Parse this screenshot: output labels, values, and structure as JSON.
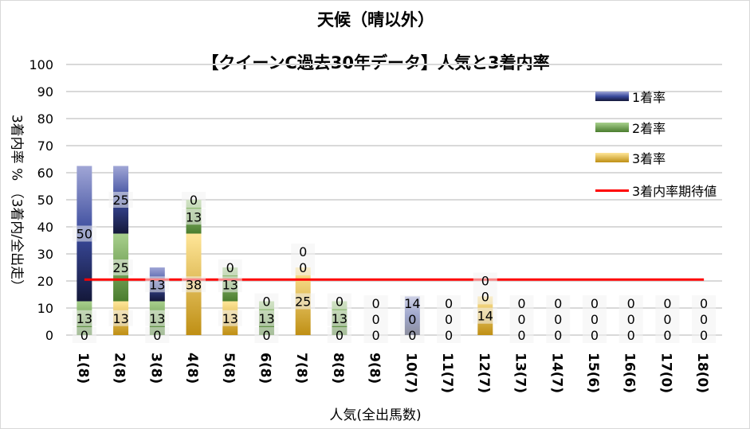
{
  "chart_data": {
    "type": "bar",
    "stacked": true,
    "title": "天候（晴以外）",
    "subtitle": "【クイーンC過去30年データ】人気と3着内率",
    "xlabel": "人気(全出馬数)",
    "ylabel": "3着内率 %  （3着内/全出走）",
    "ylim": [
      0,
      100
    ],
    "yticks": [
      0,
      10,
      20,
      30,
      40,
      50,
      60,
      70,
      80,
      90,
      100
    ],
    "grid": true,
    "legend_position": "right",
    "categories": [
      "1(8)",
      "2(8)",
      "3(8)",
      "4(8)",
      "5(8)",
      "6(8)",
      "7(8)",
      "8(8)",
      "9(8)",
      "10(7)",
      "11(7)",
      "12(7)",
      "13(7)",
      "14(7)",
      "15(6)",
      "16(6)",
      "17(0)",
      "18(0)"
    ],
    "series": [
      {
        "name": "1着率",
        "color": "#3a4a9c",
        "values": [
          50,
          25,
          12.5,
          0,
          0,
          0,
          0,
          0,
          0,
          14.3,
          0,
          0,
          0,
          0,
          0,
          0,
          0,
          0
        ]
      },
      {
        "name": "2着率",
        "color": "#5a9a3c",
        "values": [
          12.5,
          25,
          12.5,
          12.5,
          12.5,
          12.5,
          0,
          12.5,
          0,
          0,
          0,
          0,
          0,
          0,
          0,
          0,
          0,
          0
        ]
      },
      {
        "name": "3着率",
        "color": "#d4a020",
        "values": [
          0,
          12.5,
          0,
          37.5,
          12.5,
          0,
          25,
          0,
          0,
          0,
          0,
          14.3,
          0,
          0,
          0,
          0,
          0,
          0
        ]
      }
    ],
    "reference_line": {
      "name": "3着内率期待値",
      "color": "#ff0000",
      "value": 20.5
    }
  }
}
